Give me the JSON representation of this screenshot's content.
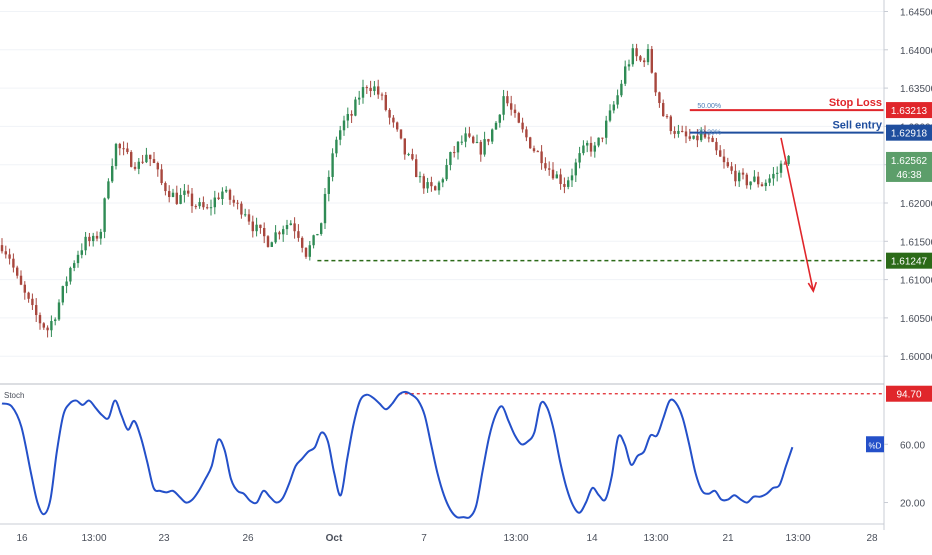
{
  "chart_data": {
    "type": "candlestick",
    "main": {
      "ylim": [
        1.5965,
        1.6465
      ],
      "y_ticks": [
        "1.64500",
        "1.64000",
        "1.63500",
        "1.63000",
        "1.62500",
        "1.62000",
        "1.61500",
        "1.61000",
        "1.60500",
        "1.60000"
      ],
      "y_tick_values": [
        1.645,
        1.64,
        1.635,
        1.63,
        1.625,
        1.62,
        1.615,
        1.61,
        1.605,
        1.6
      ],
      "x_ticks": [
        "16",
        "13:00",
        "23",
        "26",
        "Oct",
        "7",
        "13:00",
        "14",
        "13:00",
        "21",
        "13:00",
        "28"
      ],
      "x_tick_bold": [
        false,
        false,
        false,
        false,
        true,
        false,
        false,
        false,
        false,
        false,
        false,
        false
      ],
      "price_path": [
        [
          0,
          1.6145
        ],
        [
          2,
          1.613
        ],
        [
          4,
          1.61
        ],
        [
          6,
          1.608
        ],
        [
          8,
          1.606
        ],
        [
          10,
          1.6045
        ],
        [
          12,
          1.6035
        ],
        [
          14,
          1.6055
        ],
        [
          16,
          1.6085
        ],
        [
          18,
          1.6115
        ],
        [
          20,
          1.6135
        ],
        [
          22,
          1.615
        ],
        [
          24,
          1.615
        ],
        [
          26,
          1.6165
        ],
        [
          28,
          1.6235
        ],
        [
          30,
          1.6275
        ],
        [
          32,
          1.6265
        ],
        [
          34,
          1.6255
        ],
        [
          36,
          1.625
        ],
        [
          38,
          1.6265
        ],
        [
          40,
          1.625
        ],
        [
          42,
          1.6225
        ],
        [
          44,
          1.6215
        ],
        [
          46,
          1.6205
        ],
        [
          48,
          1.621
        ],
        [
          50,
          1.62
        ],
        [
          52,
          1.6195
        ],
        [
          54,
          1.619
        ],
        [
          56,
          1.6205
        ],
        [
          58,
          1.6215
        ],
        [
          60,
          1.6205
        ],
        [
          62,
          1.6195
        ],
        [
          64,
          1.619
        ],
        [
          66,
          1.617
        ],
        [
          68,
          1.616
        ],
        [
          70,
          1.615
        ],
        [
          72,
          1.616
        ],
        [
          74,
          1.617
        ],
        [
          76,
          1.6175
        ],
        [
          78,
          1.616
        ],
        [
          80,
          1.6135
        ],
        [
          82,
          1.615
        ],
        [
          84,
          1.6175
        ],
        [
          86,
          1.6235
        ],
        [
          88,
          1.6285
        ],
        [
          90,
          1.6305
        ],
        [
          92,
          1.6315
        ],
        [
          94,
          1.634
        ],
        [
          96,
          1.6355
        ],
        [
          98,
          1.635
        ],
        [
          100,
          1.6335
        ],
        [
          102,
          1.631
        ],
        [
          104,
          1.629
        ],
        [
          106,
          1.6265
        ],
        [
          108,
          1.625
        ],
        [
          110,
          1.623
        ],
        [
          112,
          1.622
        ],
        [
          114,
          1.6215
        ],
        [
          116,
          1.6235
        ],
        [
          118,
          1.626
        ],
        [
          120,
          1.6275
        ],
        [
          122,
          1.6285
        ],
        [
          124,
          1.6275
        ],
        [
          126,
          1.627
        ],
        [
          128,
          1.6285
        ],
        [
          130,
          1.6305
        ],
        [
          132,
          1.634
        ],
        [
          134,
          1.632
        ],
        [
          136,
          1.63
        ],
        [
          138,
          1.6285
        ],
        [
          140,
          1.627
        ],
        [
          142,
          1.626
        ],
        [
          144,
          1.6245
        ],
        [
          146,
          1.6235
        ],
        [
          148,
          1.6225
        ],
        [
          150,
          1.624
        ],
        [
          152,
          1.626
        ],
        [
          154,
          1.6275
        ],
        [
          156,
          1.627
        ],
        [
          158,
          1.629
        ],
        [
          160,
          1.6315
        ],
        [
          162,
          1.634
        ],
        [
          164,
          1.6375
        ],
        [
          166,
          1.6395
        ],
        [
          168,
          1.6385
        ],
        [
          170,
          1.6395
        ],
        [
          172,
          1.635
        ],
        [
          174,
          1.6315
        ],
        [
          176,
          1.63
        ],
        [
          178,
          1.629
        ],
        [
          180,
          1.6285
        ],
        [
          182,
          1.628
        ],
        [
          184,
          1.629
        ],
        [
          186,
          1.628
        ],
        [
          188,
          1.6265
        ],
        [
          190,
          1.625
        ],
        [
          192,
          1.624
        ],
        [
          194,
          1.6232
        ],
        [
          196,
          1.6228
        ],
        [
          198,
          1.623
        ],
        [
          200,
          1.6225
        ],
        [
          202,
          1.6232
        ],
        [
          204,
          1.624
        ],
        [
          206,
          1.6258
        ],
        [
          207,
          1.6256
        ]
      ],
      "stop_loss": {
        "label": "Stop Loss",
        "value": 1.63213,
        "value_label": "1.63213",
        "color": "#e0262b"
      },
      "sell_entry": {
        "label": "Sell entry",
        "value": 1.62918,
        "value_label": "1.62918",
        "color": "#1f4e9e"
      },
      "target": {
        "value": 1.61247,
        "value_label": "1.61247",
        "color": "#2b6a18"
      },
      "current": {
        "value": 1.62562,
        "value_label": "1.62562",
        "countdown": "46:38",
        "color": "#5c9e6a"
      },
      "fib_labels": {
        "fib50": "50.00%",
        "fib382": "38.20%"
      },
      "fib50_value": 1.63213,
      "fib382_value": 1.62918,
      "up_color": "#2f8b55",
      "down_color": "#a8473e"
    },
    "stoch": {
      "title": "Stoch",
      "ylim": [
        8,
        100
      ],
      "y_ticks": [
        "60.00",
        "20.00"
      ],
      "y_tick_values": [
        60,
        20
      ],
      "line_color": "#2450c9",
      "badge_label": "%D",
      "level": {
        "value": 94.7,
        "value_label": "94.70",
        "color": "#e0262b"
      },
      "series": [
        [
          0,
          88
        ],
        [
          3,
          86
        ],
        [
          6,
          72
        ],
        [
          9,
          40
        ],
        [
          11,
          20
        ],
        [
          13,
          12
        ],
        [
          15,
          22
        ],
        [
          17,
          55
        ],
        [
          19,
          80
        ],
        [
          21,
          88
        ],
        [
          23,
          90
        ],
        [
          25,
          87
        ],
        [
          27,
          90
        ],
        [
          29,
          85
        ],
        [
          31,
          80
        ],
        [
          33,
          78
        ],
        [
          35,
          90
        ],
        [
          37,
          80
        ],
        [
          39,
          70
        ],
        [
          41,
          76
        ],
        [
          43,
          65
        ],
        [
          45,
          48
        ],
        [
          47,
          30
        ],
        [
          49,
          28
        ],
        [
          51,
          27
        ],
        [
          53,
          28
        ],
        [
          55,
          24
        ],
        [
          57,
          20
        ],
        [
          59,
          22
        ],
        [
          61,
          28
        ],
        [
          63,
          36
        ],
        [
          65,
          45
        ],
        [
          67,
          63
        ],
        [
          69,
          56
        ],
        [
          71,
          36
        ],
        [
          73,
          28
        ],
        [
          75,
          26
        ],
        [
          77,
          21
        ],
        [
          79,
          20
        ],
        [
          81,
          28
        ],
        [
          83,
          24
        ],
        [
          85,
          20
        ],
        [
          87,
          23
        ],
        [
          89,
          33
        ],
        [
          91,
          45
        ],
        [
          93,
          50
        ],
        [
          95,
          55
        ],
        [
          97,
          58
        ],
        [
          99,
          68
        ],
        [
          101,
          62
        ],
        [
          103,
          40
        ],
        [
          105,
          25
        ],
        [
          107,
          50
        ],
        [
          109,
          74
        ],
        [
          111,
          90
        ],
        [
          113,
          94
        ],
        [
          115,
          92
        ],
        [
          117,
          88
        ],
        [
          119,
          84
        ],
        [
          121,
          88
        ],
        [
          123,
          94
        ],
        [
          125,
          96
        ],
        [
          127,
          94
        ],
        [
          129,
          90
        ],
        [
          131,
          80
        ],
        [
          133,
          60
        ],
        [
          135,
          40
        ],
        [
          137,
          25
        ],
        [
          139,
          15
        ],
        [
          141,
          10
        ],
        [
          143,
          10
        ],
        [
          145,
          10
        ],
        [
          147,
          18
        ],
        [
          149,
          42
        ],
        [
          151,
          65
        ],
        [
          153,
          80
        ],
        [
          155,
          86
        ],
        [
          157,
          76
        ],
        [
          159,
          66
        ],
        [
          161,
          60
        ],
        [
          163,
          62
        ],
        [
          165,
          68
        ],
        [
          167,
          88
        ],
        [
          169,
          85
        ],
        [
          171,
          70
        ],
        [
          173,
          48
        ],
        [
          175,
          30
        ],
        [
          177,
          18
        ],
        [
          179,
          13
        ],
        [
          181,
          20
        ],
        [
          183,
          30
        ],
        [
          185,
          25
        ],
        [
          187,
          22
        ],
        [
          189,
          38
        ],
        [
          191,
          65
        ],
        [
          193,
          60
        ],
        [
          195,
          46
        ],
        [
          197,
          52
        ],
        [
          199,
          55
        ],
        [
          201,
          66
        ],
        [
          203,
          66
        ],
        [
          205,
          78
        ],
        [
          207,
          90
        ],
        [
          209,
          88
        ],
        [
          211,
          78
        ],
        [
          213,
          60
        ],
        [
          215,
          40
        ],
        [
          217,
          28
        ],
        [
          219,
          26
        ],
        [
          221,
          28
        ],
        [
          223,
          22
        ],
        [
          225,
          22
        ],
        [
          227,
          25
        ],
        [
          229,
          22
        ],
        [
          231,
          20
        ],
        [
          233,
          24
        ],
        [
          235,
          24
        ],
        [
          237,
          26
        ],
        [
          239,
          30
        ],
        [
          241,
          32
        ],
        [
          243,
          45
        ],
        [
          245,
          58
        ]
      ]
    }
  }
}
